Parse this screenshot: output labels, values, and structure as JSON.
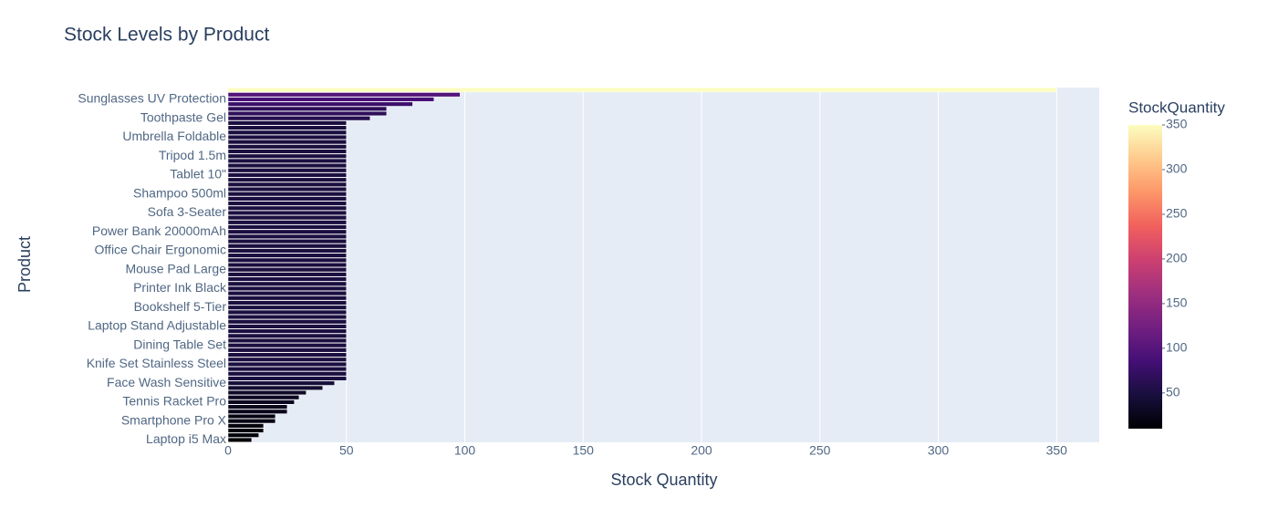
{
  "chart_data": {
    "type": "barh",
    "title": "Stock Levels by Product",
    "xlabel": "Stock Quantity",
    "ylabel": "Product",
    "categories": [
      "Laptop i5 Max",
      null,
      null,
      null,
      "Smartphone Pro X",
      null,
      null,
      null,
      "Tennis Racket Pro",
      null,
      null,
      null,
      "Face Wash Sensitive",
      null,
      null,
      null,
      "Knife Set Stainless Steel",
      null,
      null,
      null,
      "Dining Table Set",
      null,
      null,
      null,
      "Laptop Stand Adjustable",
      null,
      null,
      null,
      "Bookshelf 5-Tier",
      null,
      null,
      null,
      "Printer Ink Black",
      null,
      null,
      null,
      "Mouse Pad Large",
      null,
      null,
      null,
      "Office Chair Ergonomic",
      null,
      null,
      null,
      "Power Bank 20000mAh",
      null,
      null,
      null,
      "Sofa 3-Seater",
      null,
      null,
      null,
      "Shampoo 500ml",
      null,
      null,
      null,
      "Tablet 10\"",
      null,
      null,
      null,
      "Tripod 1.5m",
      null,
      null,
      null,
      "Umbrella Foldable",
      null,
      null,
      null,
      "Toothpaste Gel",
      null,
      null,
      null,
      "Sunglasses UV Protection",
      null,
      null
    ],
    "values": [
      10,
      13,
      15,
      15,
      20,
      20,
      25,
      25,
      28,
      30,
      33,
      40,
      45,
      50,
      50,
      50,
      50,
      50,
      50,
      50,
      50,
      50,
      50,
      50,
      50,
      50,
      50,
      50,
      50,
      50,
      50,
      50,
      50,
      50,
      50,
      50,
      50,
      50,
      50,
      50,
      50,
      50,
      50,
      50,
      50,
      50,
      50,
      50,
      50,
      50,
      50,
      50,
      50,
      50,
      50,
      50,
      50,
      50,
      50,
      50,
      50,
      50,
      50,
      50,
      50,
      50,
      50,
      50,
      60,
      67,
      67,
      78,
      87,
      98,
      350
    ],
    "colorscale": "magma",
    "colorbar_title": "StockQuantity",
    "clim": [
      10,
      350
    ],
    "cticks": [
      50,
      100,
      150,
      200,
      250,
      300,
      350
    ],
    "xlim": [
      0,
      368
    ],
    "xticks": [
      0,
      50,
      100,
      150,
      200,
      250,
      300,
      350
    ],
    "grid": true
  }
}
